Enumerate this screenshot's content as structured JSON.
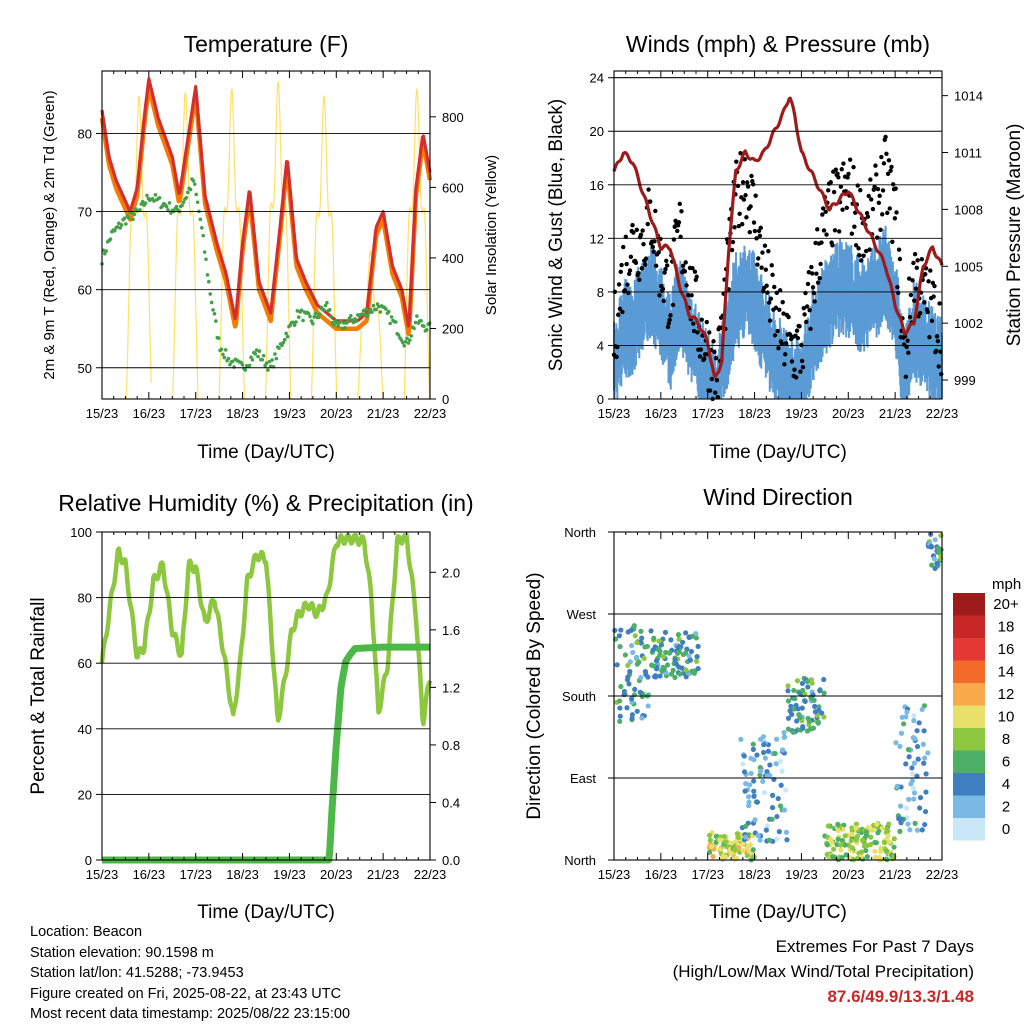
{
  "colors": {
    "temp_2m": "#d32f2f",
    "temp_9m": "#f57c00",
    "dewpoint": "#43a047",
    "solar": "#ffe066",
    "wind": "#5b9bd5",
    "gust": "#000000",
    "pressure": "#9e1b1b",
    "rh": "#8dc63f",
    "precip": "#4cb848"
  },
  "time_ticks": [
    "15/23",
    "16/23",
    "17/23",
    "18/23",
    "19/23",
    "20/23",
    "21/23",
    "22/23"
  ],
  "chart_data": [
    {
      "type": "line",
      "title": "Temperature (F)",
      "xlabel": "Time (Day/UTC)",
      "ylabel": "2m & 9m T (Red, Orange) & 2m Td (Green)",
      "y2label": "Solar Insolation (Yellow)",
      "ylim": [
        46,
        88
      ],
      "yticks": [
        50,
        60,
        70,
        80
      ],
      "y2lim": [
        0,
        930
      ],
      "y2ticks": [
        0,
        200,
        400,
        600,
        800
      ],
      "x_unit": "days after 15/23",
      "series": [
        {
          "name": "2m T",
          "axis": "left",
          "x": [
            0,
            0.15,
            0.3,
            0.6,
            0.75,
            0.9,
            1.0,
            1.2,
            1.5,
            1.65,
            1.85,
            2.0,
            2.2,
            2.45,
            2.65,
            2.85,
            3.0,
            3.15,
            3.35,
            3.6,
            3.8,
            3.95,
            4.15,
            4.35,
            4.6,
            4.8,
            5.0,
            5.2,
            5.45,
            5.65,
            5.85,
            6.0,
            6.2,
            6.4,
            6.55,
            6.7,
            6.85,
            7.0
          ],
          "y": [
            83,
            77,
            74,
            70,
            73,
            82,
            87,
            82,
            77,
            72,
            80,
            86,
            72,
            66,
            62,
            56,
            66,
            73,
            61,
            57,
            68,
            77,
            64,
            61,
            58,
            57,
            56,
            56,
            56,
            57,
            68,
            70,
            63,
            60,
            55,
            73,
            80,
            75
          ]
        },
        {
          "name": "9m T",
          "axis": "left",
          "x": [
            0,
            0.15,
            0.3,
            0.6,
            0.75,
            0.9,
            1.0,
            1.2,
            1.5,
            1.65,
            1.85,
            2.0,
            2.2,
            2.45,
            2.65,
            2.85,
            3.0,
            3.15,
            3.35,
            3.6,
            3.8,
            3.95,
            4.15,
            4.35,
            4.6,
            4.8,
            5.0,
            5.2,
            5.45,
            5.65,
            5.85,
            6.0,
            6.2,
            6.4,
            6.55,
            6.7,
            6.85,
            7.0
          ],
          "y": [
            82,
            76,
            73,
            69,
            72,
            81,
            86,
            81,
            76,
            71,
            79,
            85,
            71,
            65,
            61,
            55,
            65,
            72,
            60,
            56,
            67,
            76,
            63,
            60,
            57,
            56,
            55,
            55,
            55,
            56,
            67,
            69,
            62,
            59,
            54,
            72,
            79,
            74
          ]
        },
        {
          "name": "2m Td",
          "axis": "left",
          "x": [
            0,
            0.2,
            0.5,
            0.8,
            1.0,
            1.3,
            1.6,
            1.8,
            1.95,
            2.1,
            2.3,
            2.5,
            2.7,
            3.0,
            3.3,
            3.6,
            3.9,
            4.2,
            4.5,
            4.8,
            5.0,
            5.3,
            5.6,
            5.9,
            6.2,
            6.5,
            6.7,
            7.0
          ],
          "y": [
            64,
            67,
            69,
            70,
            72,
            71,
            70,
            72,
            74,
            69,
            60,
            53,
            51,
            50,
            52,
            50,
            54,
            57,
            56,
            58,
            55,
            56,
            57,
            58,
            56,
            53,
            56,
            55
          ]
        },
        {
          "name": "Solar",
          "axis": "right",
          "peaks": [
            0.79,
            1.78,
            2.77,
            3.76,
            4.74,
            5.73,
            6.72
          ],
          "peak_values": [
            860,
            870,
            880,
            900,
            860,
            420,
            880
          ]
        }
      ]
    },
    {
      "type": "scatter",
      "title": "Winds (mph) & Pressure (mb)",
      "xlabel": "Time (Day/UTC)",
      "ylabel": "Sonic Wind & Gust (Blue, Black)",
      "y2label": "Station Pressure (Maroon)",
      "ylim": [
        0,
        24.5
      ],
      "yticks": [
        0,
        4,
        8,
        12,
        16,
        20,
        24
      ],
      "y2lim": [
        998,
        1015.3
      ],
      "y2ticks": [
        999,
        1002,
        1005,
        1008,
        1011,
        1014
      ],
      "x_unit": "days after 15/23",
      "series": [
        {
          "name": "Pressure",
          "axis": "right",
          "x": [
            0,
            0.2,
            0.4,
            0.6,
            0.8,
            1.0,
            1.2,
            1.4,
            1.6,
            1.8,
            2.0,
            2.15,
            2.3,
            2.45,
            2.6,
            2.8,
            3.0,
            3.2,
            3.4,
            3.6,
            3.75,
            3.85,
            4.0,
            4.2,
            4.4,
            4.6,
            4.8,
            5.0,
            5.2,
            5.4,
            5.6,
            5.8,
            6.0,
            6.2,
            6.4,
            6.6,
            6.8,
            7.0
          ],
          "y": [
            1010,
            1011,
            1010.5,
            1009,
            1007.5,
            1006,
            1006,
            1004,
            1002.5,
            1002,
            1001,
            999,
            1000,
            1006,
            1010,
            1011,
            1010.5,
            1011,
            1012,
            1013,
            1014,
            1013,
            1011,
            1010,
            1009,
            1008,
            1008.5,
            1009,
            1008,
            1007,
            1006,
            1005,
            1003,
            1001.5,
            1002,
            1005,
            1006,
            1005
          ]
        },
        {
          "name": "Wind",
          "axis": "left",
          "x": [
            0,
            0.2,
            0.4,
            0.6,
            0.8,
            1.0,
            1.2,
            1.4,
            1.6,
            1.8,
            2.0,
            2.2,
            2.4,
            2.6,
            2.8,
            3.0,
            3.2,
            3.4,
            3.6,
            3.8,
            4.0,
            4.2,
            4.4,
            4.6,
            4.8,
            5.0,
            5.2,
            5.4,
            5.6,
            5.8,
            6.0,
            6.2,
            6.4,
            6.6,
            6.8,
            7.0
          ],
          "y": [
            3,
            6,
            6,
            8,
            9,
            7,
            5,
            8,
            6,
            4,
            2,
            1,
            5,
            8,
            9,
            8,
            6,
            4,
            3,
            2,
            2,
            5,
            7,
            8,
            9,
            9,
            8,
            8,
            9,
            10,
            8,
            2,
            6,
            5,
            4,
            3
          ]
        },
        {
          "name": "Gust",
          "axis": "left",
          "x": [
            0,
            0.2,
            0.4,
            0.6,
            0.8,
            1.0,
            1.2,
            1.4,
            1.6,
            1.8,
            2.0,
            2.2,
            2.4,
            2.6,
            2.8,
            3.0,
            3.2,
            3.4,
            3.6,
            3.8,
            4.0,
            4.2,
            4.4,
            4.6,
            4.8,
            5.0,
            5.2,
            5.4,
            5.6,
            5.8,
            6.0,
            6.2,
            6.4,
            6.6,
            6.8,
            7.0
          ],
          "y": [
            5,
            10,
            12,
            12,
            14,
            10,
            8,
            13,
            9,
            6,
            4,
            2,
            9,
            15,
            17,
            14,
            10,
            7,
            5,
            4,
            4,
            8,
            12,
            14,
            15,
            16,
            14,
            13,
            15,
            17,
            14,
            3,
            10,
            8,
            7,
            5
          ]
        }
      ]
    },
    {
      "type": "line",
      "title": "Relative Humidity (%) & Precipitation (in)",
      "xlabel": "Time (Day/UTC)",
      "ylabel": "Percent & Total Rainfall",
      "ylim": [
        0,
        100
      ],
      "yticks": [
        0,
        20,
        40,
        60,
        80,
        100
      ],
      "y2lim": [
        0,
        2.28
      ],
      "y2ticks": [
        "0.0",
        "0.4",
        "0.8",
        "1.2",
        "1.6",
        "2.0"
      ],
      "x_unit": "days after 15/23",
      "series": [
        {
          "name": "RH",
          "axis": "left",
          "x": [
            0,
            0.1,
            0.2,
            0.35,
            0.5,
            0.75,
            0.9,
            1.1,
            1.3,
            1.5,
            1.7,
            1.85,
            2.0,
            2.2,
            2.4,
            2.6,
            2.8,
            2.95,
            3.1,
            3.3,
            3.5,
            3.75,
            3.9,
            4.05,
            4.2,
            4.4,
            4.6,
            4.8,
            5.0,
            5.2,
            5.4,
            5.6,
            5.75,
            5.9,
            6.1,
            6.3,
            6.5,
            6.7,
            6.85,
            7.0
          ],
          "y": [
            60,
            70,
            80,
            94,
            90,
            62,
            65,
            85,
            90,
            70,
            62,
            90,
            89,
            72,
            80,
            63,
            43,
            60,
            85,
            93,
            92,
            42,
            55,
            70,
            75,
            78,
            75,
            80,
            97,
            98,
            98,
            97,
            80,
            45,
            60,
            97,
            99,
            75,
            42,
            56
          ]
        },
        {
          "name": "Precip",
          "axis": "right",
          "x": [
            0,
            4.85,
            4.9,
            5.0,
            5.1,
            5.2,
            5.3,
            5.4,
            6.0,
            6.5,
            7.0
          ],
          "y": [
            0,
            0,
            0.3,
            0.8,
            1.2,
            1.38,
            1.43,
            1.47,
            1.48,
            1.48,
            1.48
          ]
        }
      ]
    },
    {
      "type": "scatter",
      "title": "Wind Direction",
      "xlabel": "Time (Day/UTC)",
      "ylabel": "Direction (Colored By Speed)",
      "yticks": [
        "North",
        "East",
        "South",
        "West",
        "North"
      ],
      "x_unit": "days after 15/23",
      "clusters": [
        {
          "x0": 0,
          "x1": 0.8,
          "dir0": 150,
          "dir1": 260,
          "speed": 5
        },
        {
          "x0": 0.8,
          "x1": 1.8,
          "dir0": 200,
          "dir1": 250,
          "speed": 5
        },
        {
          "x0": 2.0,
          "x1": 3.0,
          "dir0": 0,
          "dir1": 30,
          "speed": 9
        },
        {
          "x0": 2.7,
          "x1": 3.7,
          "dir0": 20,
          "dir1": 140,
          "speed": 3
        },
        {
          "x0": 3.7,
          "x1": 4.5,
          "dir0": 140,
          "dir1": 200,
          "speed": 5
        },
        {
          "x0": 4.5,
          "x1": 6.0,
          "dir0": 0,
          "dir1": 40,
          "speed": 8
        },
        {
          "x0": 6.0,
          "x1": 6.7,
          "dir0": 30,
          "dir1": 170,
          "speed": 3
        },
        {
          "x0": 6.7,
          "x1": 7.0,
          "dir0": 320,
          "dir1": 360,
          "speed": 5
        }
      ],
      "colorbar": {
        "unit": "mph",
        "labels": [
          "20+",
          "18",
          "16",
          "14",
          "12",
          "10",
          "8",
          "6",
          "4",
          "2",
          "0"
        ],
        "colors": [
          "#9e1b1b",
          "#c62828",
          "#e53935",
          "#f26b2a",
          "#f9a84a",
          "#e8e06a",
          "#8dc63f",
          "#4caf68",
          "#3f7fc0",
          "#7ab8e6",
          "#c8e8f8"
        ]
      }
    }
  ],
  "info": {
    "location": "Location: Beacon",
    "elevation": "Station elevation: 90.1598 m",
    "latlon": "Station lat/lon: 41.5288; -73.9453",
    "created": "Figure created on Fri, 2025-08-22, at 23:43 UTC",
    "recent": "Most recent data timestamp: 2025/08/22 23:15:00"
  },
  "extremes": {
    "line1": "Extremes For Past 7 Days",
    "line2": "(High/Low/Max Wind/Total Precipitation)",
    "values": "87.6/49.9/13.3/1.48"
  }
}
